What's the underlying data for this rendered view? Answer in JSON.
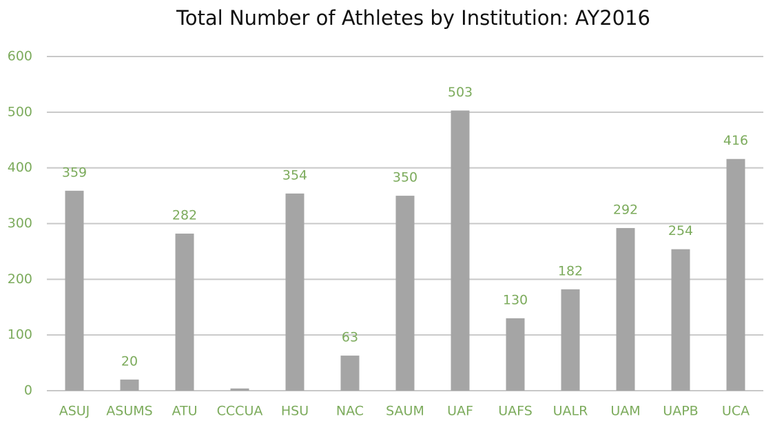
{
  "chart_data": {
    "type": "bar",
    "title": "Total Number of Athletes by Institution: AY2016",
    "categories": [
      "ASUJ",
      "ASUMS",
      "ATU",
      "CCCUA",
      "HSU",
      "NAC",
      "SAUM",
      "UAF",
      "UAFS",
      "UALR",
      "UAM",
      "UAPB",
      "UCA"
    ],
    "values": [
      359,
      20,
      282,
      4,
      354,
      63,
      350,
      503,
      130,
      182,
      292,
      254,
      416
    ],
    "value_labels": [
      "359",
      "20",
      "282",
      null,
      "354",
      "63",
      "350",
      "503",
      "130",
      "182",
      "292",
      "254",
      "416"
    ],
    "color": "#a5a5a5",
    "ylim": [
      0,
      600
    ],
    "yticks": [
      0,
      100,
      200,
      300,
      400,
      500,
      600
    ],
    "grid": true
  }
}
